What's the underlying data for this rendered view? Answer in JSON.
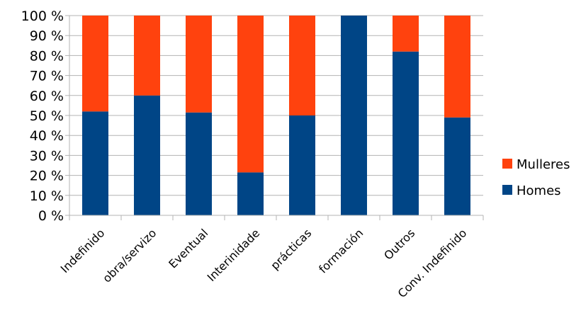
{
  "chart_data": {
    "type": "bar",
    "stacked": true,
    "categories": [
      "Indefinido",
      "obra/servizo",
      "Eventual",
      "Interinidade",
      "prácticas",
      "formación",
      "Outros",
      "Conv. Indefinido"
    ],
    "series": [
      {
        "name": "Homes",
        "color": "#004586",
        "values": [
          52,
          60,
          51.5,
          21.5,
          50,
          100,
          82,
          49
        ]
      },
      {
        "name": "Mulleres",
        "color": "#ff420e",
        "values": [
          48,
          40,
          48.5,
          78.5,
          50,
          0,
          18,
          51
        ]
      }
    ],
    "yticks": [
      "0 %",
      "10 %",
      "20 %",
      "30 %",
      "40 %",
      "50 %",
      "60 %",
      "70 %",
      "80 %",
      "90 %",
      "100 %"
    ],
    "ylim": [
      0,
      100
    ],
    "grid": true,
    "legend_position": "right"
  }
}
